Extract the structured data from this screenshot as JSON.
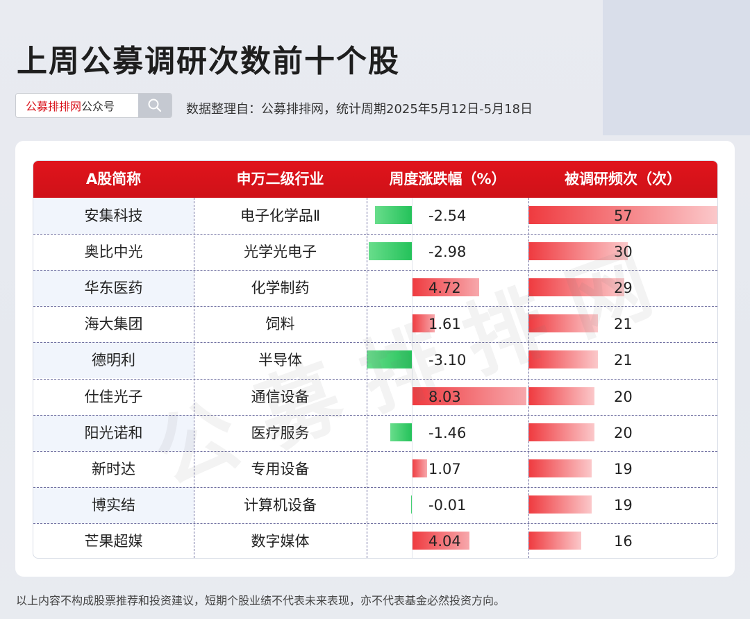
{
  "title": "上周公募调研次数前十个股",
  "search": {
    "brand": "公募排排网",
    "account": "公众号",
    "icon": "search-icon"
  },
  "source": "数据整理自：公募排排网，统计周期2025年5月12日-5月18日",
  "headers": [
    "A股简称",
    "申万二级行业",
    "周度涨跌幅（%）",
    "被调研频次（次）"
  ],
  "watermark": "公募排排网",
  "footer": "以上内容不构成股票推荐和投资建议，短期个股业绩不代表未来表现，亦不代表基金必然投资方向。",
  "colors": {
    "header": "#d9141c",
    "positive": "#ef3a3f",
    "negative": "#2cc45e"
  },
  "chart_data": {
    "type": "table",
    "columns": [
      "A股简称",
      "申万二级行业",
      "周度涨跌幅（%）",
      "被调研频次（次）"
    ],
    "rows": [
      {
        "name": "安集科技",
        "industry": "电子化学品Ⅱ",
        "change": "-2.54",
        "freq": "57"
      },
      {
        "name": "奥比中光",
        "industry": "光学光电子",
        "change": "-2.98",
        "freq": "30"
      },
      {
        "name": "华东医药",
        "industry": "化学制药",
        "change": "4.72",
        "freq": "29"
      },
      {
        "name": "海大集团",
        "industry": "饲料",
        "change": "1.61",
        "freq": "21"
      },
      {
        "name": "德明利",
        "industry": "半导体",
        "change": "-3.10",
        "freq": "21"
      },
      {
        "name": "仕佳光子",
        "industry": "通信设备",
        "change": "8.03",
        "freq": "20"
      },
      {
        "name": "阳光诺和",
        "industry": "医疗服务",
        "change": "-1.46",
        "freq": "20"
      },
      {
        "name": "新时达",
        "industry": "专用设备",
        "change": "1.07",
        "freq": "19"
      },
      {
        "name": "博实结",
        "industry": "计算机设备",
        "change": "-0.01",
        "freq": "19"
      },
      {
        "name": "芒果超媒",
        "industry": "数字媒体",
        "change": "4.04",
        "freq": "16"
      }
    ]
  }
}
